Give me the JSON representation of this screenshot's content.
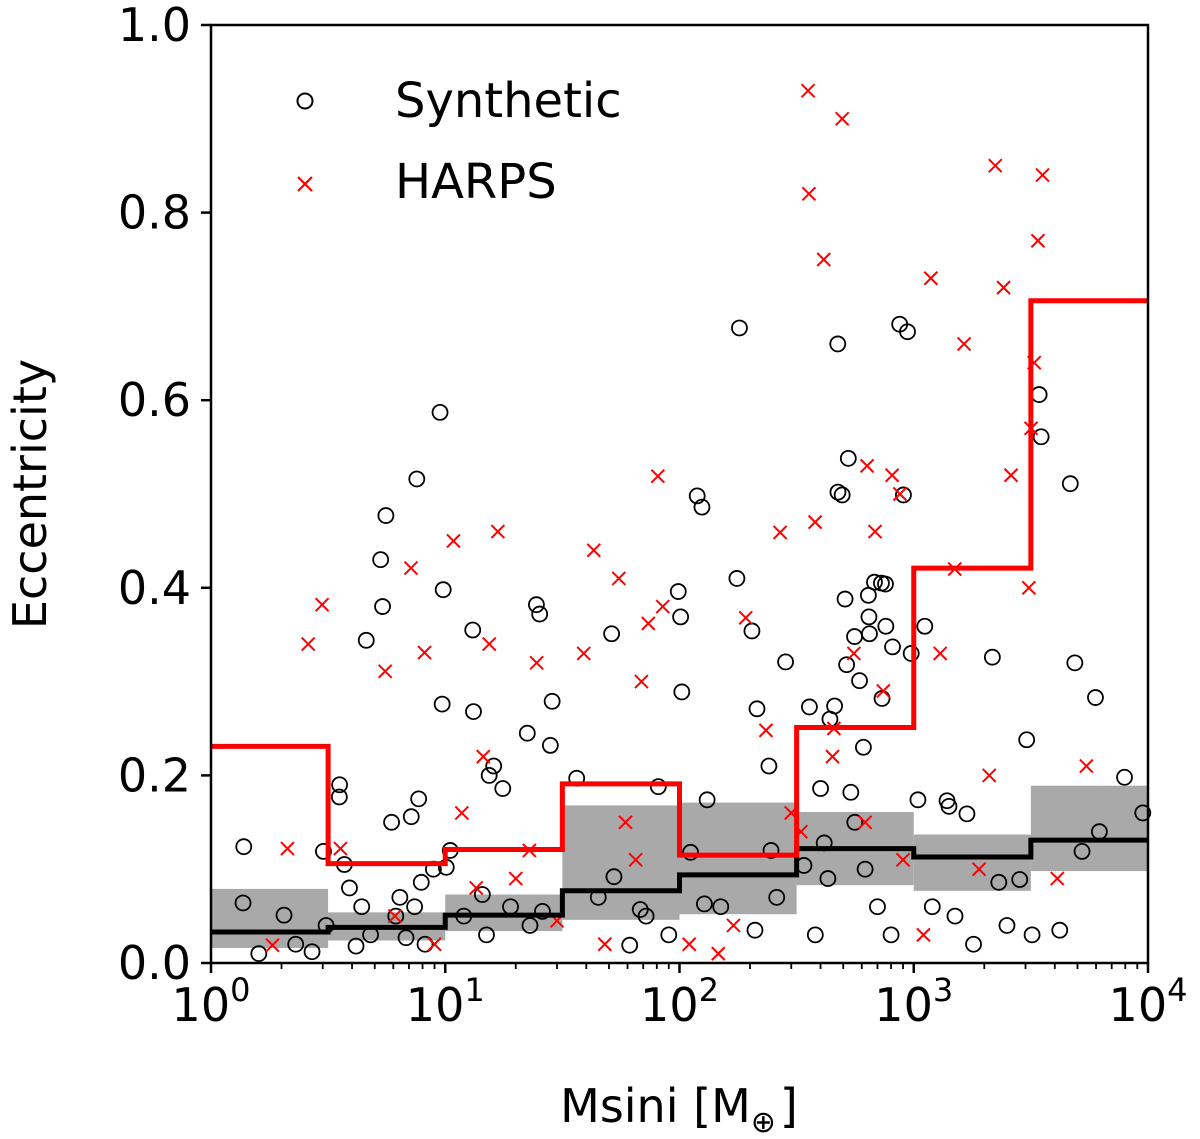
{
  "chart_data": {
    "type": "scatter",
    "xlabel": "Msini [M",
    "xlabel_symbol": "⊕",
    "xlabel_close": "]",
    "ylabel": "Eccentricity",
    "xscale": "log",
    "xlim": [
      1,
      10000
    ],
    "ylim": [
      0.0,
      1.0
    ],
    "x_ticks": [
      {
        "value": 1,
        "base": "10",
        "exp": "0"
      },
      {
        "value": 10,
        "base": "10",
        "exp": "1"
      },
      {
        "value": 100,
        "base": "10",
        "exp": "2"
      },
      {
        "value": 1000,
        "base": "10",
        "exp": "3"
      },
      {
        "value": 10000,
        "base": "10",
        "exp": "4"
      }
    ],
    "y_ticks": [
      {
        "value": 0.0,
        "label": "0.0"
      },
      {
        "value": 0.2,
        "label": "0.2"
      },
      {
        "value": 0.4,
        "label": "0.4"
      },
      {
        "value": 0.6,
        "label": "0.6"
      },
      {
        "value": 0.8,
        "label": "0.8"
      },
      {
        "value": 1.0,
        "label": "1.0"
      }
    ],
    "legend": {
      "placement": "top-left",
      "entries": [
        {
          "label": "Synthetic",
          "marker": "open-circle",
          "color": "#000000"
        },
        {
          "label": "HARPS",
          "marker": "x",
          "color": "#ff0000"
        }
      ]
    },
    "series": [
      {
        "name": "Synthetic",
        "marker": "open-circle",
        "color": "#000000",
        "points": [
          [
            1.38,
            0.124
          ],
          [
            1.37,
            0.064
          ],
          [
            2.05,
            0.051
          ],
          [
            2.7,
            0.012
          ],
          [
            3.02,
            0.119
          ],
          [
            3.1,
            0.04
          ],
          [
            3.53,
            0.177
          ],
          [
            3.54,
            0.19
          ],
          [
            3.71,
            0.105
          ],
          [
            4.16,
            0.018
          ],
          [
            4.4,
            0.06
          ],
          [
            4.6,
            0.344
          ],
          [
            5.3,
            0.43
          ],
          [
            5.4,
            0.38
          ],
          [
            5.58,
            0.477
          ],
          [
            5.9,
            0.15
          ],
          [
            6.15,
            0.05
          ],
          [
            6.8,
            0.027
          ],
          [
            7.16,
            0.156
          ],
          [
            7.56,
            0.516
          ],
          [
            7.7,
            0.175
          ],
          [
            7.9,
            0.086
          ],
          [
            8.9,
            0.1
          ],
          [
            9.5,
            0.587
          ],
          [
            9.7,
            0.276
          ],
          [
            9.8,
            0.398
          ],
          [
            10.1,
            0.102
          ],
          [
            10.5,
            0.12
          ],
          [
            13.1,
            0.355
          ],
          [
            13.2,
            0.268
          ],
          [
            14.4,
            0.073
          ],
          [
            15.4,
            0.2
          ],
          [
            16.1,
            0.21
          ],
          [
            17.6,
            0.186
          ],
          [
            22.4,
            0.245
          ],
          [
            24.5,
            0.382
          ],
          [
            25.3,
            0.372
          ],
          [
            28.1,
            0.232
          ],
          [
            28.6,
            0.279
          ],
          [
            36.4,
            0.197
          ],
          [
            51.3,
            0.351
          ],
          [
            52.5,
            0.092
          ],
          [
            61.3,
            0.019
          ],
          [
            68.0,
            0.057
          ],
          [
            81.2,
            0.188
          ],
          [
            98.8,
            0.396
          ],
          [
            101.1,
            0.369
          ],
          [
            102.3,
            0.289
          ],
          [
            111.5,
            0.118
          ],
          [
            119.0,
            0.498
          ],
          [
            124.7,
            0.486
          ],
          [
            127.7,
            0.063
          ],
          [
            131.2,
            0.174
          ],
          [
            175.8,
            0.41
          ],
          [
            180.3,
            0.677
          ],
          [
            203.8,
            0.354
          ],
          [
            214.2,
            0.271
          ],
          [
            240.8,
            0.21
          ],
          [
            245.9,
            0.12
          ],
          [
            283.7,
            0.321
          ],
          [
            339.8,
            0.104
          ],
          [
            358.6,
            0.273
          ],
          [
            400.2,
            0.186
          ],
          [
            414.7,
            0.128
          ],
          [
            438.7,
            0.26
          ],
          [
            459.2,
            0.274
          ],
          [
            473.8,
            0.66
          ],
          [
            474.7,
            0.502
          ],
          [
            494.8,
            0.499
          ],
          [
            509.1,
            0.388
          ],
          [
            516.9,
            0.318
          ],
          [
            525.6,
            0.538
          ],
          [
            538.7,
            0.182
          ],
          [
            558.8,
            0.348
          ],
          [
            586.9,
            0.301
          ],
          [
            609.6,
            0.23
          ],
          [
            640.2,
            0.392
          ],
          [
            643.8,
            0.369
          ],
          [
            647.1,
            0.351
          ],
          [
            679.7,
            0.406
          ],
          [
            727.9,
            0.405
          ],
          [
            732.3,
            0.282
          ],
          [
            757.3,
            0.404
          ],
          [
            760.0,
            0.359
          ],
          [
            811.8,
            0.337
          ],
          [
            871.0,
            0.681
          ],
          [
            903.6,
            0.499
          ],
          [
            940.4,
            0.673
          ],
          [
            975.2,
            0.33
          ],
          [
            1041.9,
            0.174
          ],
          [
            1114.6,
            0.359
          ],
          [
            1387.1,
            0.173
          ],
          [
            1413.6,
            0.167
          ],
          [
            1686.6,
            0.159
          ],
          [
            2165.7,
            0.326
          ],
          [
            2307.2,
            0.086
          ],
          [
            2834.2,
            0.089
          ],
          [
            3034.7,
            0.238
          ],
          [
            3429.2,
            0.606
          ],
          [
            3497.4,
            0.561
          ],
          [
            4659.1,
            0.511
          ],
          [
            4871.5,
            0.32
          ],
          [
            5228.8,
            0.119
          ],
          [
            5966.7,
            0.283
          ],
          [
            7938.4,
            0.198
          ],
          [
            1.6,
            0.01
          ],
          [
            2.3,
            0.02
          ],
          [
            3.9,
            0.08
          ],
          [
            4.8,
            0.03
          ],
          [
            6.4,
            0.07
          ],
          [
            7.4,
            0.06
          ],
          [
            8.2,
            0.02
          ],
          [
            12.0,
            0.05
          ],
          [
            15.0,
            0.03
          ],
          [
            19.0,
            0.06
          ],
          [
            23.0,
            0.04
          ],
          [
            26.0,
            0.055
          ],
          [
            45.0,
            0.07
          ],
          [
            72.0,
            0.05
          ],
          [
            90.0,
            0.03
          ],
          [
            150.0,
            0.06
          ],
          [
            210.0,
            0.035
          ],
          [
            260.0,
            0.07
          ],
          [
            380.0,
            0.03
          ],
          [
            430.0,
            0.09
          ],
          [
            560.0,
            0.15
          ],
          [
            620.0,
            0.1
          ],
          [
            700.0,
            0.06
          ],
          [
            800.0,
            0.03
          ],
          [
            1200.0,
            0.06
          ],
          [
            1500.0,
            0.05
          ],
          [
            1800.0,
            0.02
          ],
          [
            2500.0,
            0.04
          ],
          [
            3200.0,
            0.03
          ],
          [
            4200.0,
            0.035
          ],
          [
            6200.0,
            0.14
          ],
          [
            9500.0,
            0.16
          ]
        ]
      },
      {
        "name": "HARPS",
        "marker": "x",
        "color": "#ff0000",
        "points": [
          [
            1.83,
            0.019
          ],
          [
            2.12,
            0.122
          ],
          [
            2.6,
            0.34
          ],
          [
            2.98,
            0.382
          ],
          [
            3.57,
            0.122
          ],
          [
            5.54,
            0.311
          ],
          [
            7.14,
            0.421
          ],
          [
            8.16,
            0.331
          ],
          [
            10.84,
            0.45
          ],
          [
            11.77,
            0.16
          ],
          [
            13.56,
            0.08
          ],
          [
            14.53,
            0.22
          ],
          [
            15.41,
            0.34
          ],
          [
            16.77,
            0.46
          ],
          [
            22.87,
            0.12
          ],
          [
            24.56,
            0.32
          ],
          [
            39.02,
            0.33
          ],
          [
            43.05,
            0.44
          ],
          [
            55.1,
            0.41
          ],
          [
            58.81,
            0.15
          ],
          [
            68.8,
            0.3
          ],
          [
            73.6,
            0.362
          ],
          [
            80.8,
            0.519
          ],
          [
            84.84,
            0.38
          ],
          [
            146.4,
            0.01
          ],
          [
            191.8,
            0.368
          ],
          [
            233.9,
            0.248
          ],
          [
            268.8,
            0.459
          ],
          [
            353.82,
            0.93
          ],
          [
            356.98,
            0.82
          ],
          [
            379.3,
            0.47
          ],
          [
            412.9,
            0.75
          ],
          [
            456.1,
            0.25
          ],
          [
            494.81,
            0.9
          ],
          [
            555.2,
            0.33
          ],
          [
            632.1,
            0.53
          ],
          [
            683.45,
            0.46
          ],
          [
            741.4,
            0.29
          ],
          [
            808.5,
            0.52
          ],
          [
            872.86,
            0.5
          ],
          [
            1183.1,
            0.73
          ],
          [
            1296.9,
            0.33
          ],
          [
            1496.6,
            0.42
          ],
          [
            1639.4,
            0.66
          ],
          [
            2228.43,
            0.85
          ],
          [
            2417.84,
            0.72
          ],
          [
            2602.5,
            0.52
          ],
          [
            3168.9,
            0.57
          ],
          [
            3267.3,
            0.64
          ],
          [
            3389.28,
            0.77
          ],
          [
            3545.71,
            0.84
          ],
          [
            5455.3,
            0.21
          ],
          [
            6.1,
            0.05
          ],
          [
            9.0,
            0.02
          ],
          [
            20.0,
            0.09
          ],
          [
            30.0,
            0.045
          ],
          [
            48.0,
            0.02
          ],
          [
            65.0,
            0.11
          ],
          [
            110.0,
            0.02
          ],
          [
            170.0,
            0.04
          ],
          [
            300.0,
            0.16
          ],
          [
            330.0,
            0.14
          ],
          [
            450.0,
            0.22
          ],
          [
            620.0,
            0.15
          ],
          [
            900.0,
            0.11
          ],
          [
            1100.0,
            0.03
          ],
          [
            1900.0,
            0.1
          ],
          [
            2100.0,
            0.2
          ],
          [
            3100.0,
            0.4
          ],
          [
            4100.0,
            0.09
          ]
        ]
      },
      {
        "name": "Synthetic median (step)",
        "type": "step",
        "color": "#000000",
        "bin_edges": [
          1,
          3.162,
          10,
          31.62,
          100,
          316.2,
          1000,
          3162,
          10000
        ],
        "values": [
          0.033,
          0.038,
          0.051,
          0.077,
          0.094,
          0.122,
          0.113,
          0.131
        ]
      },
      {
        "name": "HARPS upper (step)",
        "type": "step",
        "color": "#ff0000",
        "bin_edges": [
          1,
          3.162,
          10,
          31.62,
          100,
          316.2,
          1000,
          3162,
          10000
        ],
        "values": [
          0.231,
          0.106,
          0.121,
          0.191,
          0.115,
          0.251,
          0.421,
          0.706
        ]
      },
      {
        "name": "Synthetic spread band",
        "type": "band",
        "color": "#a9a9a9",
        "bin_edges": [
          1,
          3.162,
          10,
          31.62,
          100,
          316.2,
          1000,
          3162,
          10000
        ],
        "lower": [
          0.016,
          0.024,
          0.034,
          0.046,
          0.052,
          0.083,
          0.077,
          0.098
        ],
        "upper": [
          0.079,
          0.054,
          0.073,
          0.168,
          0.171,
          0.161,
          0.137,
          0.189
        ]
      }
    ]
  }
}
